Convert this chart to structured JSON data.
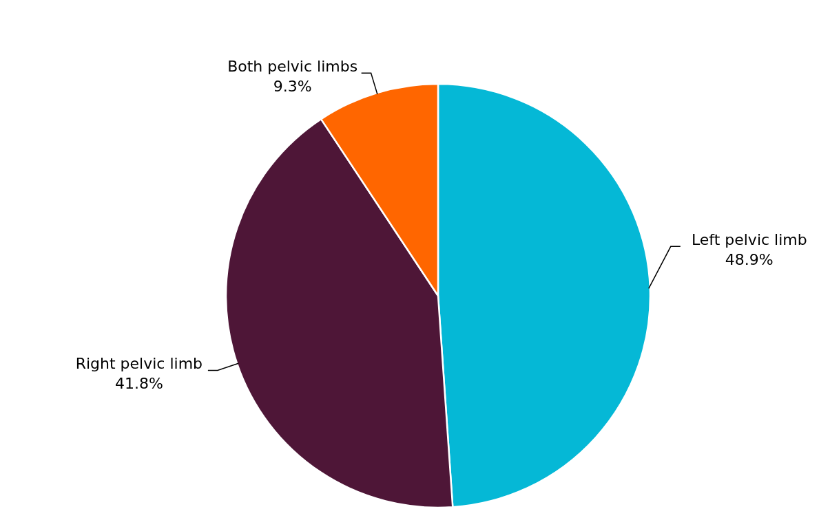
{
  "chart_data": {
    "type": "pie",
    "categories": [
      "Left pelvic limb",
      "Right pelvic limb",
      "Both pelvic limbs"
    ],
    "values": [
      48.9,
      41.8,
      9.3
    ],
    "colors": [
      "#05b8d6",
      "#4e1637",
      "#ff6600"
    ],
    "value_labels": [
      "48.9%",
      "41.8%",
      "9.3%"
    ]
  }
}
